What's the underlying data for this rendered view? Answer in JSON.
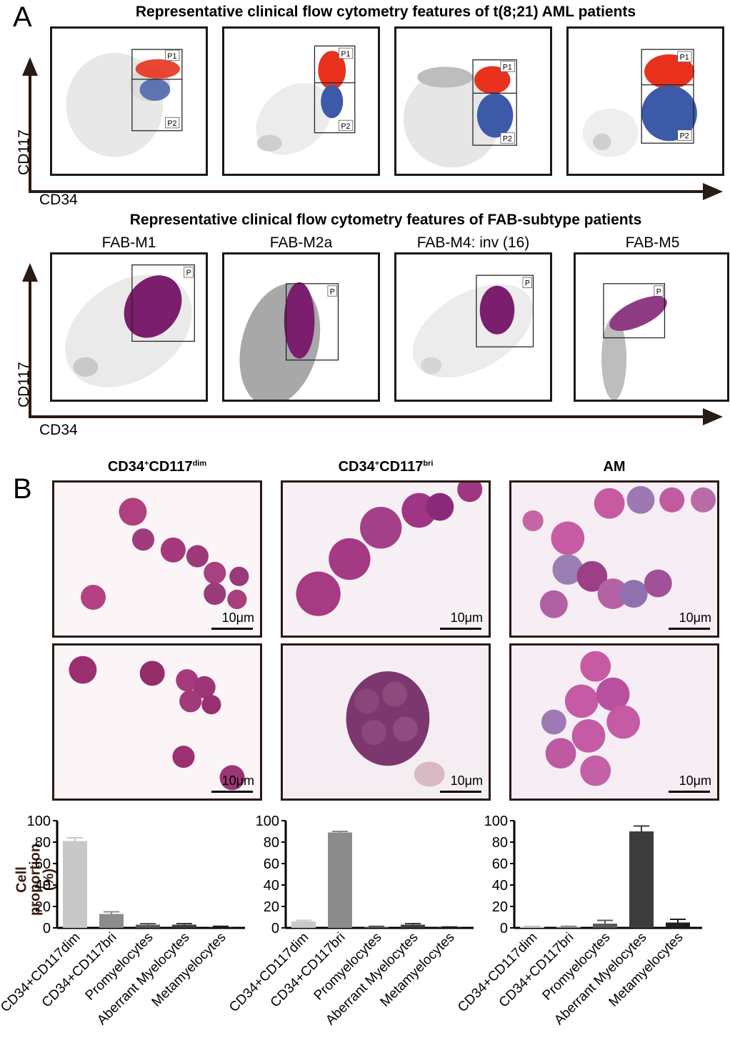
{
  "panel_a": {
    "letter": "A",
    "title_top": "Representative clinical flow cytometry features of t(8;21) AML patients",
    "title_bottom": "Representative  clinical flow cytometry features of FAB-subtype patients",
    "y_axis_label": "CD117",
    "x_axis_label": "CD34",
    "gate_labels": {
      "p1": "P1",
      "p2": "P2",
      "p": "P"
    },
    "fab_labels": [
      "FAB-M1",
      "FAB-M2a",
      "FAB-M4: inv (16)",
      "FAB-M5"
    ]
  },
  "panel_b": {
    "letter": "B",
    "columns": [
      {
        "title_main": "CD34",
        "sup1": "+",
        "mid": "CD117",
        "sup2": "dim"
      },
      {
        "title_main": "CD34",
        "sup1": "+",
        "mid": "CD117",
        "sup2": "bri"
      },
      {
        "title_main": "AM",
        "sup1": "",
        "mid": "",
        "sup2": ""
      }
    ],
    "scale_label": "10μm",
    "y_axis_label_line1": "Cell",
    "y_axis_label_line2": "proportion",
    "y_axis_label_line3": "(%)"
  },
  "chart_data": [
    {
      "type": "bar",
      "categories": [
        "CD34+CD117dim",
        "CD34+CD117bri",
        "Promyelocytes",
        "Aberrant Myelocytes",
        "Metamyelocytes"
      ],
      "values": [
        81,
        13,
        3,
        3,
        1
      ],
      "errors": [
        3,
        2,
        1,
        1,
        0.5
      ],
      "ylim": [
        0,
        100
      ],
      "yticks": [
        0,
        20,
        40,
        60,
        80,
        100
      ],
      "colors": [
        "#c8c8c8",
        "#8c8c8c",
        "#5a5a5a",
        "#3c3c3c",
        "#1e1e1e"
      ]
    },
    {
      "type": "bar",
      "categories": [
        "CD34+CD117dim",
        "CD34+CD117bri",
        "Promyelocytes",
        "Aberrant Myelocytes",
        "Metamyelocytes"
      ],
      "values": [
        6,
        89,
        1,
        3,
        0.5
      ],
      "errors": [
        1,
        1,
        0.5,
        1,
        0.3
      ],
      "ylim": [
        0,
        100
      ],
      "yticks": [
        0,
        20,
        40,
        60,
        80,
        100
      ],
      "colors": [
        "#c8c8c8",
        "#8c8c8c",
        "#5a5a5a",
        "#3c3c3c",
        "#1e1e1e"
      ]
    },
    {
      "type": "bar",
      "categories": [
        "CD34+CD117dim",
        "CD34+CD117bri",
        "Promyelocytes",
        "Aberrant Myelocytes",
        "Metamyelocytes"
      ],
      "values": [
        1,
        1,
        4,
        90,
        5
      ],
      "errors": [
        0.5,
        0.5,
        3,
        5,
        3
      ],
      "ylim": [
        0,
        100
      ],
      "yticks": [
        0,
        20,
        40,
        60,
        80,
        100
      ],
      "colors": [
        "#c8c8c8",
        "#8c8c8c",
        "#5a5a5a",
        "#3c3c3c",
        "#1e1e1e"
      ]
    }
  ]
}
